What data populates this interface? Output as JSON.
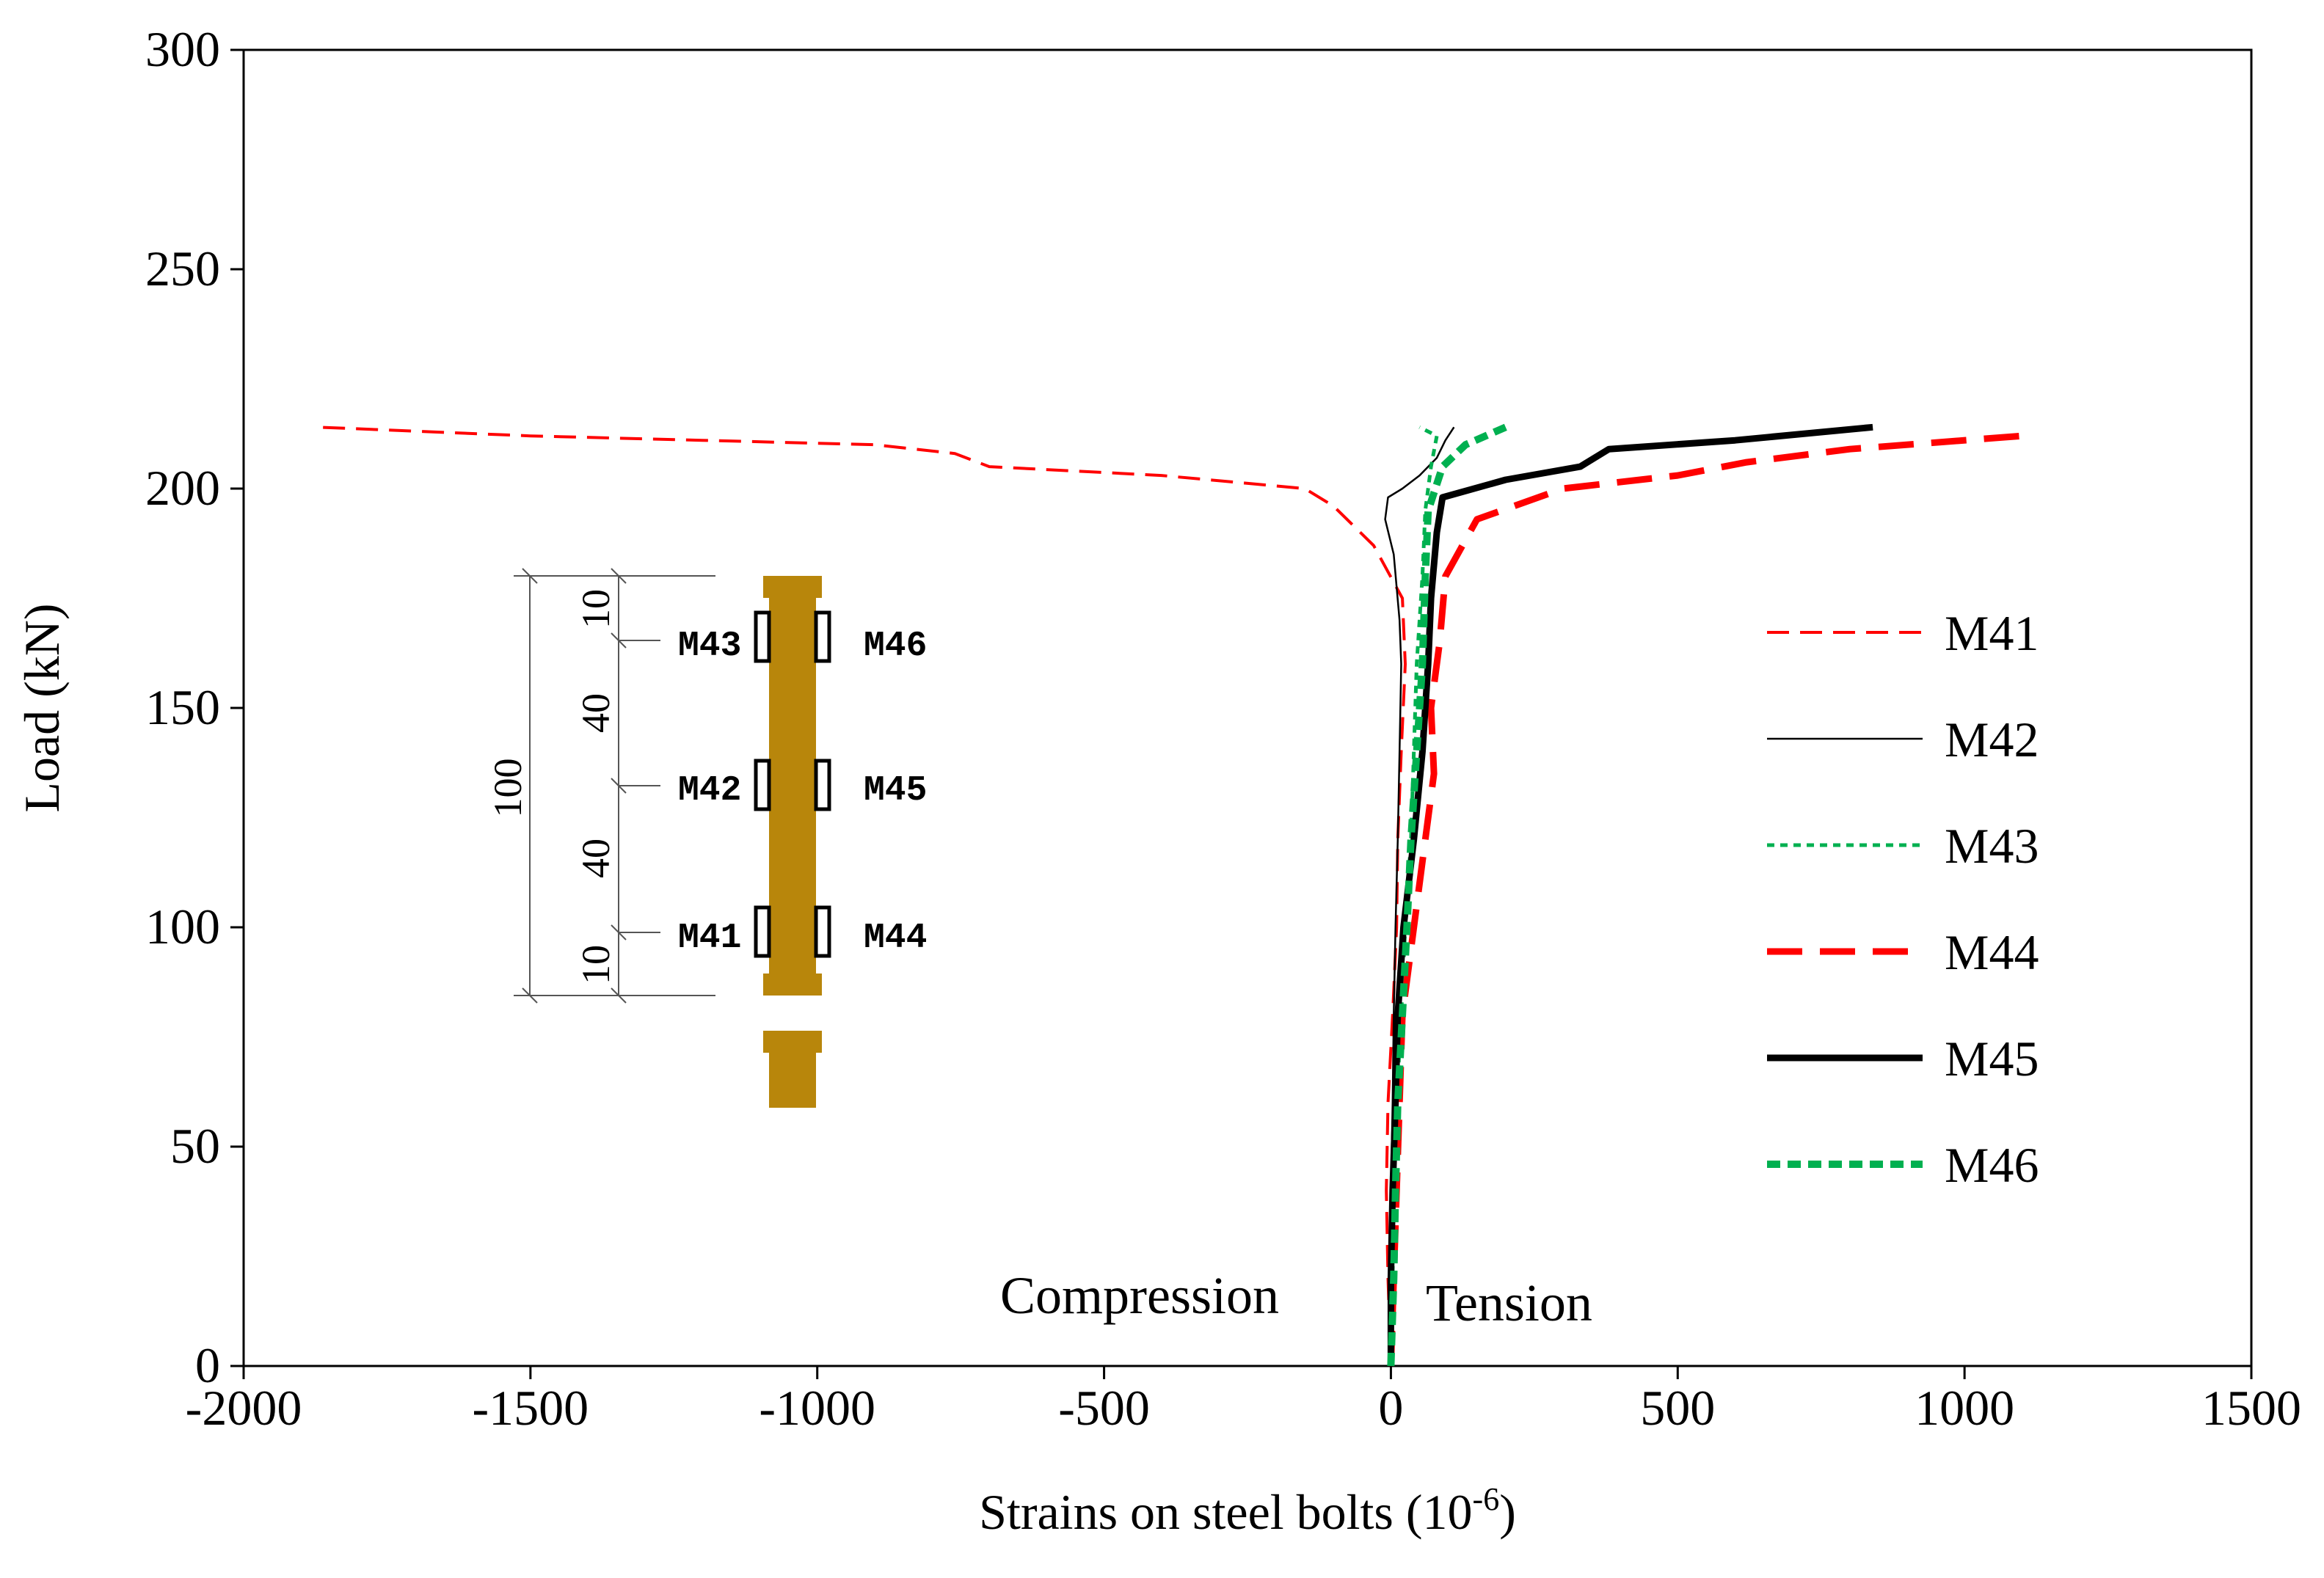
{
  "chart_data": {
    "type": "line",
    "title": "",
    "xlabel": "Strains on steel bolts (10",
    "xlabel_exponent": "-6",
    "xlabel_suffix": ")",
    "ylabel": "Load (kN)",
    "xlim": [
      -2000,
      1500
    ],
    "ylim": [
      0,
      300
    ],
    "x_ticks": [
      -2000,
      -1500,
      -1000,
      -500,
      0,
      500,
      1000,
      1500
    ],
    "y_ticks": [
      0,
      50,
      100,
      150,
      200,
      250,
      300
    ],
    "grid": false,
    "legend_position": "right",
    "annotations": {
      "compression": "Compression",
      "tension": "Tension"
    },
    "series": [
      {
        "name": "M41",
        "color": "#ff0000",
        "style": "dashed-thin",
        "points": [
          [
            0,
            0
          ],
          [
            -5,
            20
          ],
          [
            -8,
            40
          ],
          [
            -5,
            60
          ],
          [
            3,
            80
          ],
          [
            10,
            100
          ],
          [
            12,
            120
          ],
          [
            18,
            140
          ],
          [
            25,
            160
          ],
          [
            20,
            175
          ],
          [
            -30,
            187
          ],
          [
            -100,
            196
          ],
          [
            -150,
            200
          ],
          [
            -400,
            203
          ],
          [
            -700,
            205
          ],
          [
            -760,
            208
          ],
          [
            -900,
            210
          ],
          [
            -1200,
            211
          ],
          [
            -1500,
            212
          ],
          [
            -1870,
            214
          ]
        ]
      },
      {
        "name": "M42",
        "color": "#000000",
        "style": "solid-thin",
        "points": [
          [
            0,
            0
          ],
          [
            -2,
            20
          ],
          [
            0,
            40
          ],
          [
            3,
            60
          ],
          [
            5,
            80
          ],
          [
            8,
            100
          ],
          [
            12,
            120
          ],
          [
            15,
            140
          ],
          [
            18,
            160
          ],
          [
            15,
            170
          ],
          [
            5,
            185
          ],
          [
            -10,
            193
          ],
          [
            -5,
            198
          ],
          [
            20,
            200
          ],
          [
            50,
            203
          ],
          [
            80,
            207
          ],
          [
            95,
            211
          ],
          [
            110,
            214
          ]
        ]
      },
      {
        "name": "M43",
        "color": "#00b050",
        "style": "dotted-thin",
        "points": [
          [
            0,
            0
          ],
          [
            3,
            20
          ],
          [
            5,
            40
          ],
          [
            10,
            60
          ],
          [
            18,
            80
          ],
          [
            25,
            100
          ],
          [
            35,
            120
          ],
          [
            40,
            140
          ],
          [
            45,
            160
          ],
          [
            55,
            180
          ],
          [
            60,
            195
          ],
          [
            70,
            205
          ],
          [
            80,
            212
          ],
          [
            50,
            214
          ]
        ]
      },
      {
        "name": "M44",
        "color": "#ff0000",
        "style": "dashed-thick",
        "points": [
          [
            0,
            0
          ],
          [
            5,
            20
          ],
          [
            10,
            40
          ],
          [
            15,
            60
          ],
          [
            20,
            80
          ],
          [
            40,
            100
          ],
          [
            60,
            120
          ],
          [
            75,
            135
          ],
          [
            70,
            150
          ],
          [
            85,
            165
          ],
          [
            95,
            180
          ],
          [
            150,
            193
          ],
          [
            300,
            200
          ],
          [
            500,
            203
          ],
          [
            620,
            206
          ],
          [
            800,
            209
          ],
          [
            1100,
            212
          ]
        ]
      },
      {
        "name": "M45",
        "color": "#000000",
        "style": "solid-thick",
        "points": [
          [
            0,
            0
          ],
          [
            0,
            20
          ],
          [
            3,
            40
          ],
          [
            8,
            60
          ],
          [
            12,
            80
          ],
          [
            22,
            100
          ],
          [
            40,
            120
          ],
          [
            55,
            140
          ],
          [
            65,
            160
          ],
          [
            70,
            175
          ],
          [
            80,
            190
          ],
          [
            90,
            198
          ],
          [
            200,
            202
          ],
          [
            330,
            205
          ],
          [
            380,
            209
          ],
          [
            600,
            211
          ],
          [
            840,
            214
          ]
        ]
      },
      {
        "name": "M46",
        "color": "#00b050",
        "style": "dotted-thick",
        "points": [
          [
            0,
            0
          ],
          [
            5,
            20
          ],
          [
            8,
            40
          ],
          [
            12,
            60
          ],
          [
            20,
            80
          ],
          [
            28,
            100
          ],
          [
            35,
            120
          ],
          [
            45,
            140
          ],
          [
            55,
            160
          ],
          [
            60,
            180
          ],
          [
            65,
            195
          ],
          [
            90,
            205
          ],
          [
            130,
            210
          ],
          [
            200,
            214
          ]
        ]
      }
    ]
  },
  "inset": {
    "total_dim": "100",
    "segment_dims": [
      "10",
      "40",
      "40",
      "10"
    ],
    "gauges_left": [
      "M43",
      "M42",
      "M41"
    ],
    "gauges_right": [
      "M46",
      "M45",
      "M44"
    ]
  }
}
